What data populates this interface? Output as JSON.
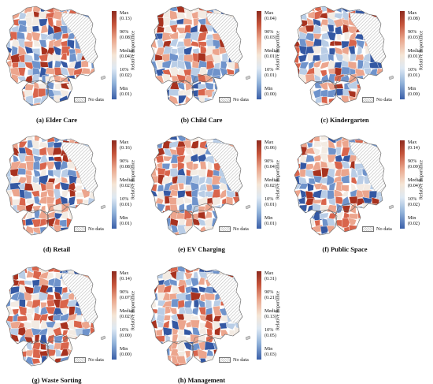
{
  "legend_common": {
    "axis_label": "Relative Importance",
    "no_data_label": "No data",
    "max_label": "Max",
    "p90_label": "90%",
    "median_label": "Median",
    "p10_label": "10%",
    "min_label": "Min"
  },
  "panels": [
    {
      "caption": "(a) Elder Care",
      "max": "(0.13)",
      "p90": "(0.08)",
      "median": "(0.04)",
      "p10": "(0.02)",
      "min": "(0.01)"
    },
    {
      "caption": "(b) Child Care",
      "max": "(0.04)",
      "p90": "(0.03)",
      "median": "(0.01)",
      "p10": "(0.01)",
      "min": "(0.00)"
    },
    {
      "caption": "(c) Kindergarten",
      "max": "(0.08)",
      "p90": "(0.03)",
      "median": "(0.01)",
      "p10": "(0.01)",
      "min": "(0.00)"
    },
    {
      "caption": "(d) Retail",
      "max": "(0.16)",
      "p90": "(0.08)",
      "median": "(0.02)",
      "p10": "(0.01)",
      "min": "(0.01)"
    },
    {
      "caption": "(e) EV Charging",
      "max": "(0.06)",
      "p90": "(0.04)",
      "median": "(0.02)",
      "p10": "(0.01)",
      "min": "(0.01)"
    },
    {
      "caption": "(f) Public Space",
      "max": "(0.14)",
      "p90": "(0.09)",
      "median": "(0.04)",
      "p10": "(0.02)",
      "min": "(0.02)"
    },
    {
      "caption": "(g) Waste Sorting",
      "max": "(0.14)",
      "p90": "(0.07)",
      "median": "(0.02)",
      "p10": "(0.00)",
      "min": "(0.00)"
    },
    {
      "caption": "(h) Management",
      "max": "(0.31)",
      "p90": "(0.21)",
      "median": "(0.13)",
      "p10": "(0.05)",
      "min": "(0.03)"
    }
  ],
  "colors": {
    "very_high": "#a8321f",
    "high": "#d9654c",
    "mid_high": "#eca58d",
    "neutral": "#f3ebe3",
    "mid_low": "#b9cde6",
    "low": "#6f93cb",
    "very_low": "#3458a3",
    "no_data": "#d9d9d9"
  }
}
